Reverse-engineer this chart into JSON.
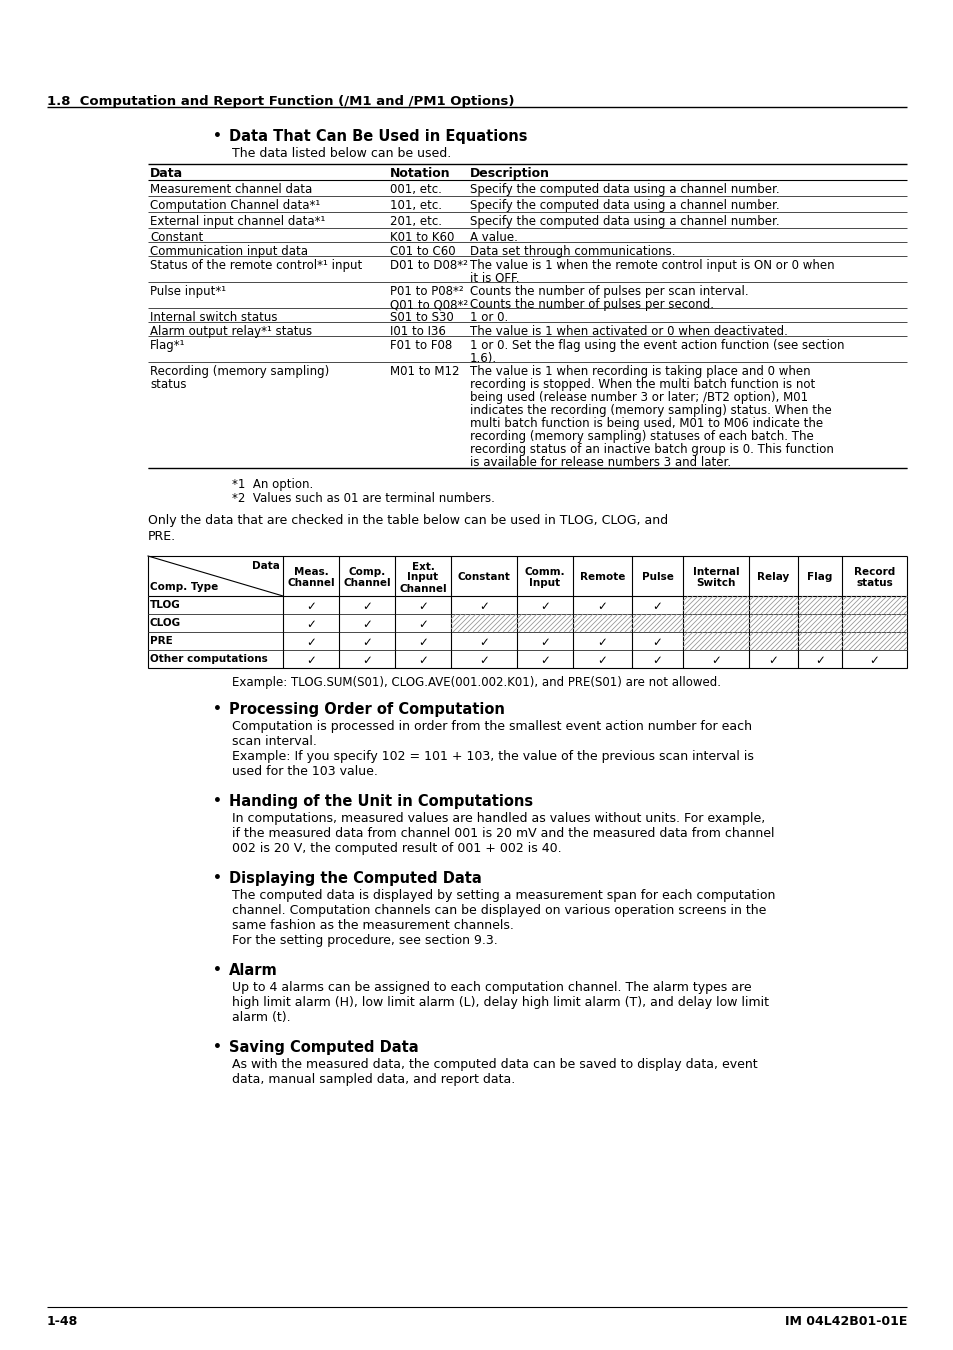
{
  "page_header": "1.8  Computation and Report Function (/M1 and /PM1 Options)",
  "page_footer_left": "1-48",
  "page_footer_right": "IM 04L42B01-01E",
  "section1_bullet": "Data That Can Be Used in Equations",
  "section1_intro": "The data listed below can be used.",
  "table1_headers": [
    "Data",
    "Notation",
    "Description"
  ],
  "table1_rows": [
    [
      "Measurement channel data",
      "001, etc.",
      "Specify the computed data using a channel number."
    ],
    [
      "Computation Channel data*1",
      "101, etc.",
      "Specify the computed data using a channel number."
    ],
    [
      "External input channel data*1",
      "201, etc.",
      "Specify the computed data using a channel number."
    ],
    [
      "Constant",
      "K01 to K60",
      "A value."
    ],
    [
      "Communication input data",
      "C01 to C60",
      "Data set through communications."
    ],
    [
      "Status of the remote control*1 input",
      "D01 to D08*2",
      "The value is 1 when the remote control input is ON or 0 when\nit is OFF."
    ],
    [
      "Pulse input*1",
      "P01 to P08*2\nQ01 to Q08*2",
      "Counts the number of pulses per scan interval.\nCounts the number of pulses per second."
    ],
    [
      "Internal switch status",
      "S01 to S30",
      "1 or 0."
    ],
    [
      "Alarm output relay*1 status",
      "I01 to I36",
      "The value is 1 when activated or 0 when deactivated."
    ],
    [
      "Flag*1",
      "F01 to F08",
      "1 or 0. Set the flag using the event action function (see section\n1.6)."
    ],
    [
      "Recording (memory sampling)\nstatus",
      "M01 to M12",
      "The value is 1 when recording is taking place and 0 when\nrecording is stopped. When the multi batch function is not\nbeing used (release number 3 or later; /BT2 option), M01\nindicates the recording (memory sampling) status. When the\nmulti batch function is being used, M01 to M06 indicate the\nrecording (memory sampling) statuses of each batch. The\nrecording status of an inactive batch group is 0. This function\nis available for release numbers 3 and later."
    ]
  ],
  "footnotes": [
    "*1  An option.",
    "*2  Values such as 01 are terminal numbers."
  ],
  "tlog_intro": "Only the data that are checked in the table below can be used in TLOG, CLOG, and\nPRE.",
  "table2_col_headers": [
    "Data\nComp. Type",
    "Meas.\nChannel",
    "Comp.\nChannel",
    "Ext.\nInput\nChannel",
    "Constant",
    "Comm.\nInput",
    "Remote",
    "Pulse",
    "Internal\nSwitch",
    "Relay",
    "Flag",
    "Record\nstatus"
  ],
  "table2_rows": [
    {
      "name": "TLOG",
      "checks": [
        true,
        true,
        true,
        true,
        true,
        true,
        true,
        false,
        false,
        false,
        false
      ]
    },
    {
      "name": "CLOG",
      "checks": [
        true,
        true,
        true,
        false,
        false,
        false,
        false,
        false,
        false,
        false,
        false
      ]
    },
    {
      "name": "PRE",
      "checks": [
        true,
        true,
        true,
        true,
        true,
        true,
        true,
        false,
        false,
        false,
        false
      ]
    },
    {
      "name": "Other computations",
      "checks": [
        true,
        true,
        true,
        true,
        true,
        true,
        true,
        true,
        true,
        true,
        true
      ]
    }
  ],
  "table2_hatch": [
    [
      false,
      false,
      false,
      false,
      false,
      false,
      false,
      true,
      true,
      true,
      true
    ],
    [
      false,
      false,
      false,
      true,
      true,
      true,
      true,
      true,
      true,
      true,
      true
    ],
    [
      false,
      false,
      false,
      false,
      false,
      false,
      false,
      true,
      true,
      true,
      true
    ],
    [
      false,
      false,
      false,
      false,
      false,
      false,
      false,
      false,
      false,
      false,
      false
    ]
  ],
  "table2_example": "Example: TLOG.SUM(S01), CLOG.AVE(001.002.K01), and PRE(S01) are not allowed.",
  "section2_bullet": "Processing Order of Computation",
  "section2_text": "Computation is processed in order from the smallest event action number for each\nscan interval.\nExample: If you specify 102 = 101 + 103, the value of the previous scan interval is\nused for the 103 value.",
  "section3_bullet": "Handing of the Unit in Computations",
  "section3_text": "In computations, measured values are handled as values without units. For example,\nif the measured data from channel 001 is 20 mV and the measured data from channel\n002 is 20 V, the computed result of 001 + 002 is 40.",
  "section4_bullet": "Displaying the Computed Data",
  "section4_text": "The computed data is displayed by setting a measurement span for each computation\nchannel. Computation channels can be displayed on various operation screens in the\nsame fashion as the measurement channels.\nFor the setting procedure, see section 9.3.",
  "section5_bullet": "Alarm",
  "section5_text": "Up to 4 alarms can be assigned to each computation channel. The alarm types are\nhigh limit alarm (H), low limit alarm (L), delay high limit alarm (T), and delay low limit\nalarm (t).",
  "section6_bullet": "Saving Computed Data",
  "section6_text": "As with the measured data, the computed data can be saved to display data, event\ndata, manual sampled data, and report data.",
  "bg_color": "#ffffff"
}
